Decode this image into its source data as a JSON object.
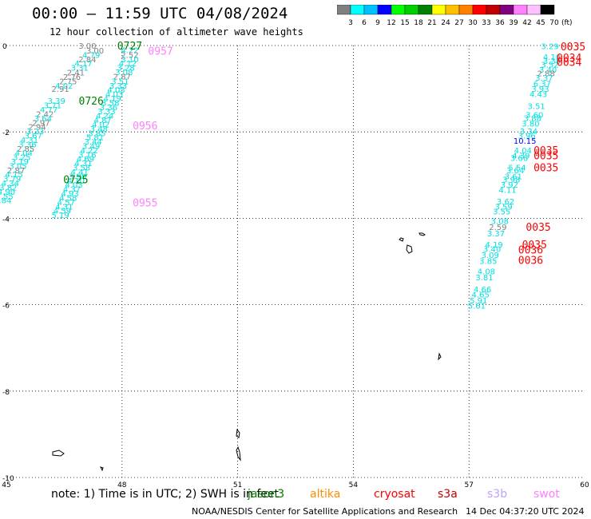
{
  "title": "00:00 — 11:59 UTC 04/08/2024",
  "subtitle": "12 hour collection of altimeter wave heights",
  "legend": {
    "unit": "(ft)",
    "ticks": [
      "3",
      "6",
      "9",
      "12",
      "15",
      "18",
      "21",
      "24",
      "27",
      "30",
      "33",
      "36",
      "39",
      "42",
      "45",
      "70"
    ],
    "colors": [
      "#808080",
      "#00ffff",
      "#00c0ff",
      "#0000ff",
      "#00ff00",
      "#00d000",
      "#008000",
      "#ffff00",
      "#ffc000",
      "#ff8000",
      "#ff0000",
      "#c00000",
      "#800080",
      "#ff80ff",
      "#ffc0ff",
      "#000000"
    ]
  },
  "note": {
    "text": "note:  1) Time is in UTC; 2) SWH is in feet",
    "satellites": [
      {
        "name": "jason3",
        "color": "#008000"
      },
      {
        "name": "altika",
        "color": "#ff8c00"
      },
      {
        "name": "cryosat",
        "color": "#ff0000"
      },
      {
        "name": "s3a",
        "color": "#c00000"
      },
      {
        "name": "s3b",
        "color": "#c0a0ff"
      },
      {
        "name": "swot",
        "color": "#ff80ff"
      }
    ]
  },
  "credit": "NOAA/NESDIS Center for Satellite Applications and Research",
  "generated": "14 Dec 04:37:20 UTC 2024",
  "chart_data": {
    "type": "scatter",
    "title": "00:00 — 11:59 UTC 04/08/2024",
    "subtitle": "12 hour collection of altimeter wave heights",
    "xlabel": "",
    "ylabel": "",
    "xlim": [
      45,
      60
    ],
    "ylim": [
      -10,
      0
    ],
    "xticks": [
      "45",
      "48",
      "51",
      "54",
      "57",
      "60"
    ],
    "yticks": [
      "0",
      "-2",
      "-4",
      "-6",
      "-8",
      "-10"
    ],
    "grid": true,
    "series": [
      {
        "name": "track A",
        "points": [
          [
            47.1,
            0,
            "3.00",
            "#808080"
          ],
          [
            47.3,
            -0.11,
            "3.00",
            "#808080"
          ],
          [
            47.2,
            -0.21,
            "4.79",
            "#00e0e0"
          ],
          [
            47.1,
            -0.31,
            "2.84",
            "#808080"
          ],
          [
            47.0,
            -0.41,
            "4.17",
            "#00e0e0"
          ],
          [
            46.9,
            -0.51,
            "3.31",
            "#00e0e0"
          ],
          [
            46.8,
            -0.62,
            "2.41",
            "#808080"
          ],
          [
            46.7,
            -0.72,
            "2.76",
            "#808080"
          ],
          [
            46.6,
            -0.82,
            "2.75",
            "#808080"
          ],
          [
            46.5,
            -0.92,
            "4.02",
            "#00e0e0"
          ],
          [
            46.4,
            -1.0,
            "2.91",
            "#808080"
          ],
          [
            46.3,
            -1.28,
            "3.39",
            "#00e0e0"
          ],
          [
            46.2,
            -1.38,
            "3.71",
            "#00e0e0"
          ],
          [
            46.1,
            -1.48,
            "4.77",
            "#00e0e0"
          ],
          [
            46.0,
            -1.58,
            "2.42",
            "#808080"
          ],
          [
            45.95,
            -1.68,
            "3.64",
            "#00e0e0"
          ],
          [
            45.9,
            -1.78,
            "2.97",
            "#808080"
          ],
          [
            45.8,
            -1.88,
            "2.94",
            "#808080"
          ],
          [
            45.75,
            -1.98,
            "3.23",
            "#00e0e0"
          ],
          [
            45.7,
            -2.08,
            "3.67",
            "#00e0e0"
          ],
          [
            45.6,
            -2.18,
            "4.31",
            "#00e0e0"
          ],
          [
            45.55,
            -2.28,
            "3.36",
            "#00e0e0"
          ],
          [
            45.5,
            -2.38,
            "2.85",
            "#808080"
          ],
          [
            45.45,
            -2.48,
            "4.04",
            "#00e0e0"
          ],
          [
            45.4,
            -2.58,
            "3.25",
            "#00e0e0"
          ],
          [
            45.35,
            -2.68,
            "3.19",
            "#00e0e0"
          ],
          [
            45.3,
            -2.78,
            "3.05",
            "#00e0e0"
          ],
          [
            45.25,
            -2.88,
            "2.87",
            "#808080"
          ],
          [
            45.2,
            -2.98,
            "4.15",
            "#00e0e0"
          ],
          [
            45.15,
            -3.08,
            "3.79",
            "#00e0e0"
          ],
          [
            45.1,
            -3.18,
            "4.34",
            "#00e0e0"
          ],
          [
            45.05,
            -3.28,
            "3.82",
            "#00e0e0"
          ],
          [
            45.0,
            -3.38,
            "4.90",
            "#00e0e0"
          ],
          [
            44.95,
            -3.48,
            "3.55",
            "#00e0e0"
          ],
          [
            44.9,
            -3.58,
            "3.84",
            "#00e0e0"
          ]
        ]
      },
      {
        "name": "track B",
        "points": [
          [
            48.2,
            -0.1,
            "4.22",
            "#00e0e0"
          ],
          [
            48.2,
            -0.21,
            "2.52",
            "#808080"
          ],
          [
            48.2,
            -0.31,
            "3.10",
            "#00e0e0"
          ],
          [
            48.15,
            -0.41,
            "4.12",
            "#00e0e0"
          ],
          [
            48.1,
            -0.51,
            "3.28",
            "#00e0e0"
          ],
          [
            48.05,
            -0.61,
            "3.08",
            "#00e0e0"
          ],
          [
            48.0,
            -0.71,
            "2.87",
            "#808080"
          ],
          [
            47.95,
            -0.82,
            "3.51",
            "#00e0e0"
          ],
          [
            47.9,
            -0.92,
            "3.33",
            "#00e0e0"
          ],
          [
            47.85,
            -1.02,
            "4.05",
            "#00e0e0"
          ],
          [
            47.8,
            -1.12,
            "4.03",
            "#00e0e0"
          ],
          [
            47.75,
            -1.22,
            "4.19",
            "#00e0e0"
          ],
          [
            47.7,
            -1.32,
            "3.58",
            "#00e0e0"
          ],
          [
            47.65,
            -1.42,
            "3.36",
            "#00e0e0"
          ],
          [
            47.6,
            -1.52,
            "3.33",
            "#00e0e0"
          ],
          [
            47.55,
            -1.62,
            "4.24",
            "#00e0e0"
          ],
          [
            47.5,
            -1.72,
            "4.87",
            "#00e0e0"
          ],
          [
            47.45,
            -1.82,
            "4.02",
            "#00e0e0"
          ],
          [
            47.4,
            -1.92,
            "3.48",
            "#00e0e0"
          ],
          [
            47.35,
            -2.02,
            "3.85",
            "#00e0e0"
          ],
          [
            47.3,
            -2.12,
            "5.81",
            "#00e0e0"
          ],
          [
            47.25,
            -2.22,
            "3.44",
            "#00e0e0"
          ],
          [
            47.2,
            -2.32,
            "3.49",
            "#00e0e0"
          ],
          [
            47.15,
            -2.42,
            "4.22",
            "#00e0e0"
          ],
          [
            47.1,
            -2.52,
            "3.16",
            "#00e0e0"
          ],
          [
            47.05,
            -2.62,
            "4.69",
            "#00e0e0"
          ],
          [
            47.0,
            -2.72,
            "4.31",
            "#00e0e0"
          ],
          [
            46.95,
            -2.82,
            "3.58",
            "#00e0e0"
          ],
          [
            46.9,
            -2.92,
            "4.41",
            "#00e0e0"
          ],
          [
            46.85,
            -3.02,
            "3.90",
            "#00e0e0"
          ],
          [
            46.8,
            -3.12,
            "4.10",
            "#00e0e0"
          ],
          [
            46.75,
            -3.22,
            "4.03",
            "#00e0e0"
          ],
          [
            46.7,
            -3.32,
            "4.37",
            "#00e0e0"
          ],
          [
            46.65,
            -3.42,
            "4.93",
            "#00e0e0"
          ],
          [
            46.6,
            -3.52,
            "4.58",
            "#00e0e0"
          ],
          [
            46.55,
            -3.62,
            "4.57",
            "#00e0e0"
          ],
          [
            46.5,
            -3.72,
            "4.31",
            "#00e0e0"
          ],
          [
            46.45,
            -3.82,
            "4.59",
            "#00e0e0"
          ],
          [
            46.4,
            -3.92,
            "5.19",
            "#00e0e0"
          ]
        ]
      },
      {
        "name": "track C",
        "points": [
          [
            59.1,
            -0.01,
            "3.29",
            "#00e0e0"
          ],
          [
            59.15,
            -0.26,
            "4.10",
            "#00e0e0"
          ],
          [
            59.15,
            -0.35,
            "3.38",
            "#00e0e0"
          ],
          [
            59.1,
            -0.43,
            "3.52",
            "#00e0e0"
          ],
          [
            59.05,
            -0.55,
            "3.40",
            "#00e0e0"
          ],
          [
            59.0,
            -0.64,
            "2.88",
            "#808080"
          ],
          [
            58.95,
            -0.74,
            "3.37",
            "#00e0e0"
          ],
          [
            58.9,
            -0.88,
            "6.37",
            "#00e0e0"
          ],
          [
            58.85,
            -1.0,
            "3.93",
            "#00e0e0"
          ],
          [
            58.8,
            -1.12,
            "4.43",
            "#00e0e0"
          ],
          [
            58.75,
            -1.4,
            "3.51",
            "#00e0e0"
          ],
          [
            58.7,
            -1.6,
            "3.60",
            "#00e0e0"
          ],
          [
            58.65,
            -1.67,
            "3.88",
            "#00e0e0"
          ],
          [
            58.6,
            -1.8,
            "3.80",
            "#00e0e0"
          ],
          [
            58.55,
            -1.98,
            "3.34",
            "#00e0e0"
          ],
          [
            58.5,
            -2.08,
            "3.96",
            "#00e0e0"
          ],
          [
            58.45,
            -2.2,
            "10.15",
            "#0000ff"
          ],
          [
            58.4,
            -2.42,
            "4.04",
            "#00e0e0"
          ],
          [
            58.35,
            -2.54,
            "4.39",
            "#00e0e0"
          ],
          [
            58.3,
            -2.6,
            "3.66",
            "#00e0e0"
          ],
          [
            58.25,
            -2.82,
            "5.54",
            "#00e0e0"
          ],
          [
            58.2,
            -2.88,
            "3.64",
            "#00e0e0"
          ],
          [
            58.15,
            -3.02,
            "3.61",
            "#00e0e0"
          ],
          [
            58.1,
            -3.1,
            "3.98",
            "#00e0e0"
          ],
          [
            58.05,
            -3.22,
            "3.92",
            "#00e0e0"
          ],
          [
            58.0,
            -3.34,
            "4.11",
            "#00e0e0"
          ],
          [
            57.95,
            -3.6,
            "3.62",
            "#00e0e0"
          ],
          [
            57.9,
            -3.72,
            "3.59",
            "#00e0e0"
          ],
          [
            57.85,
            -3.84,
            "3.55",
            "#00e0e0"
          ],
          [
            57.8,
            -4.06,
            "3.08",
            "#00e0e0"
          ],
          [
            57.75,
            -4.2,
            "2.59",
            "#808080"
          ],
          [
            57.7,
            -4.34,
            "3.37",
            "#00e0e0"
          ],
          [
            57.65,
            -4.6,
            "4.19",
            "#00e0e0"
          ],
          [
            57.6,
            -4.7,
            "3.40",
            "#00e0e0"
          ],
          [
            57.55,
            -4.84,
            "3.09",
            "#00e0e0"
          ],
          [
            57.5,
            -4.98,
            "3.85",
            "#00e0e0"
          ],
          [
            57.45,
            -5.22,
            "4.08",
            "#00e0e0"
          ],
          [
            57.4,
            -5.36,
            "3.81",
            "#00e0e0"
          ],
          [
            57.35,
            -5.64,
            "4.66",
            "#00e0e0"
          ],
          [
            57.3,
            -5.76,
            "4.65",
            "#00e0e0"
          ],
          [
            57.25,
            -5.9,
            "5.91",
            "#00e0e0"
          ],
          [
            57.2,
            -6.02,
            "5.61",
            "#00e0e0"
          ]
        ]
      }
    ],
    "time_labels": [
      {
        "x": 48.2,
        "y": 0.0,
        "text": "0727",
        "color": "#008000"
      },
      {
        "x": 49.0,
        "y": -0.12,
        "text": "0957",
        "color": "#ff80ff"
      },
      {
        "x": 47.2,
        "y": -1.28,
        "text": "0726",
        "color": "#008000"
      },
      {
        "x": 48.6,
        "y": -1.85,
        "text": "0956",
        "color": "#ff80ff"
      },
      {
        "x": 46.8,
        "y": -3.1,
        "text": "0725",
        "color": "#008000"
      },
      {
        "x": 48.6,
        "y": -3.63,
        "text": "0955",
        "color": "#ff80ff"
      },
      {
        "x": 59.7,
        "y": -0.02,
        "text": "0035",
        "color": "#ff0000"
      },
      {
        "x": 59.6,
        "y": -0.28,
        "text": "0034",
        "color": "#ff0000"
      },
      {
        "x": 59.6,
        "y": -0.38,
        "text": "0034",
        "color": "#ff0000"
      },
      {
        "x": 59.0,
        "y": -2.42,
        "text": "0035",
        "color": "#ff0000"
      },
      {
        "x": 59.0,
        "y": -2.54,
        "text": "0035",
        "color": "#ff0000"
      },
      {
        "x": 59.0,
        "y": -2.82,
        "text": "0035",
        "color": "#ff0000"
      },
      {
        "x": 58.8,
        "y": -4.2,
        "text": "0035",
        "color": "#ff0000"
      },
      {
        "x": 58.7,
        "y": -4.6,
        "text": "0035",
        "color": "#ff0000"
      },
      {
        "x": 58.6,
        "y": -4.72,
        "text": "0036",
        "color": "#ff0000"
      },
      {
        "x": 58.6,
        "y": -4.96,
        "text": "0036",
        "color": "#ff0000"
      }
    ]
  }
}
